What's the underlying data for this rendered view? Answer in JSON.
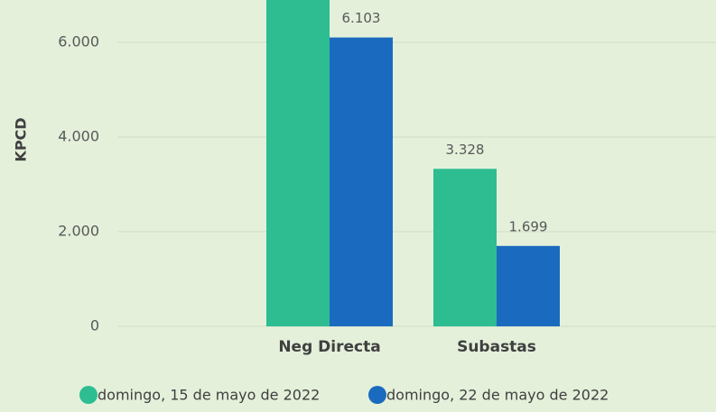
{
  "chart_data": {
    "type": "bar",
    "y_label": "KPCD",
    "categories": [
      "Neg Directa",
      "Subastas"
    ],
    "series": [
      {
        "name": "domingo, 15 de mayo de 2022",
        "color": "#2dbd91",
        "values": [
          7200,
          3328
        ],
        "value_labels": [
          null,
          "3.328"
        ]
      },
      {
        "name": "domingo, 22 de mayo de 2022",
        "color": "#1a6bbf",
        "values": [
          6103,
          1699
        ],
        "value_labels": [
          "6.103",
          "1.699"
        ]
      }
    ],
    "ylim": [
      0,
      6895
    ],
    "yticks": [
      0,
      {
        "value": 2000,
        "label": "2.000"
      },
      {
        "value": 4000,
        "label": "4.000"
      },
      {
        "value": 6000,
        "label": "6.000"
      }
    ],
    "grid": true,
    "legend": "bottom"
  }
}
